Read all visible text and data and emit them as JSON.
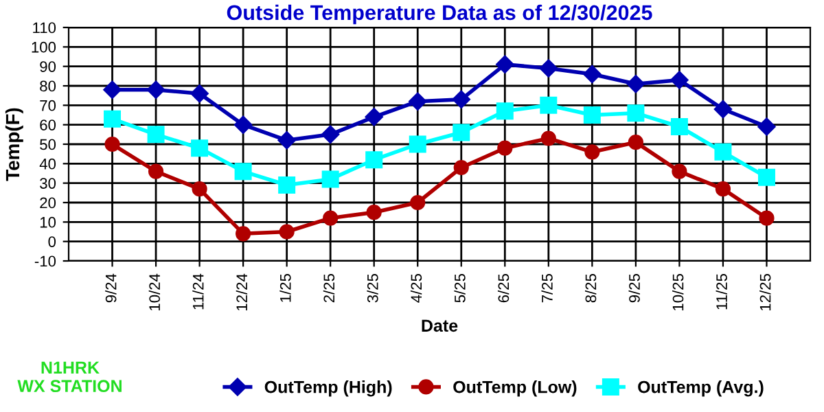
{
  "chart_data": {
    "type": "line",
    "title": "Outside Temperature Data as of 12/30/2025",
    "xlabel": "Date",
    "ylabel": "Temp(F)",
    "categories": [
      "9/24",
      "10/24",
      "11/24",
      "12/24",
      "1/25",
      "2/25",
      "3/25",
      "4/25",
      "5/25",
      "6/25",
      "7/25",
      "8/25",
      "9/25",
      "10/25",
      "11/25",
      "12/25"
    ],
    "series": [
      {
        "name": "OutTemp (High)",
        "color": "#0000b0",
        "marker": "diamond",
        "values": [
          78,
          78,
          76,
          60,
          52,
          55,
          64,
          72,
          73,
          91,
          89,
          86,
          81,
          83,
          68,
          59
        ]
      },
      {
        "name": "OutTemp (Low)",
        "color": "#b00000",
        "marker": "circle",
        "values": [
          50,
          36,
          27,
          4,
          5,
          12,
          15,
          20,
          38,
          48,
          53,
          46,
          51,
          36,
          27,
          12
        ]
      },
      {
        "name": "OutTemp (Avg.)",
        "color": "#00ffff",
        "marker": "square",
        "values": [
          63,
          55,
          48,
          36,
          29,
          32,
          42,
          50,
          56,
          67,
          70,
          65,
          66,
          59,
          46,
          33
        ]
      }
    ],
    "ylim": [
      -10,
      110
    ],
    "yticks": [
      -10,
      0,
      10,
      20,
      30,
      40,
      50,
      60,
      70,
      80,
      90,
      100,
      110
    ],
    "grid": true,
    "legend": "bottom",
    "line_style": "solid",
    "annotations": [
      "N1HRK\nWX STATION"
    ]
  }
}
